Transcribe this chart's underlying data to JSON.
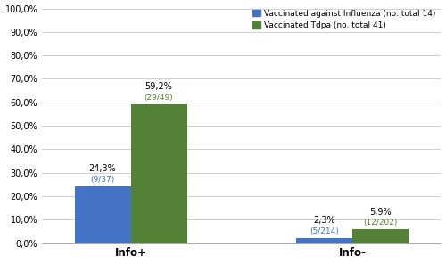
{
  "groups": [
    "Info+",
    "Info-"
  ],
  "influenza_values": [
    24.3,
    2.3
  ],
  "tdpa_values": [
    59.2,
    5.9
  ],
  "influenza_pct_labels": [
    "24,3%",
    "2,3%"
  ],
  "tdpa_pct_labels": [
    "59,2%",
    "5,9%"
  ],
  "influenza_sublabels": [
    "(9/37)",
    "(5/214)"
  ],
  "tdpa_sublabels": [
    "(29/49)",
    "(12/202)"
  ],
  "influenza_color": "#4472C4",
  "tdpa_color": "#538135",
  "legend_influenza": "Vaccinated against Influenza (no. total 14)",
  "legend_tdpa": "Vaccinated Tdpa (no. total 41)",
  "ylim": [
    0,
    100
  ],
  "yticks": [
    0,
    10,
    20,
    30,
    40,
    50,
    60,
    70,
    80,
    90,
    100
  ],
  "ytick_labels": [
    "0,0%",
    "10,0%",
    "20,0%",
    "30,0%",
    "40,0%",
    "50,0%",
    "60,0%",
    "70,0%",
    "80,0%",
    "90,0%",
    "100,0%"
  ],
  "bar_width": 0.38,
  "group_positions": [
    0.9,
    2.4
  ],
  "xlim": [
    0.3,
    3.0
  ]
}
